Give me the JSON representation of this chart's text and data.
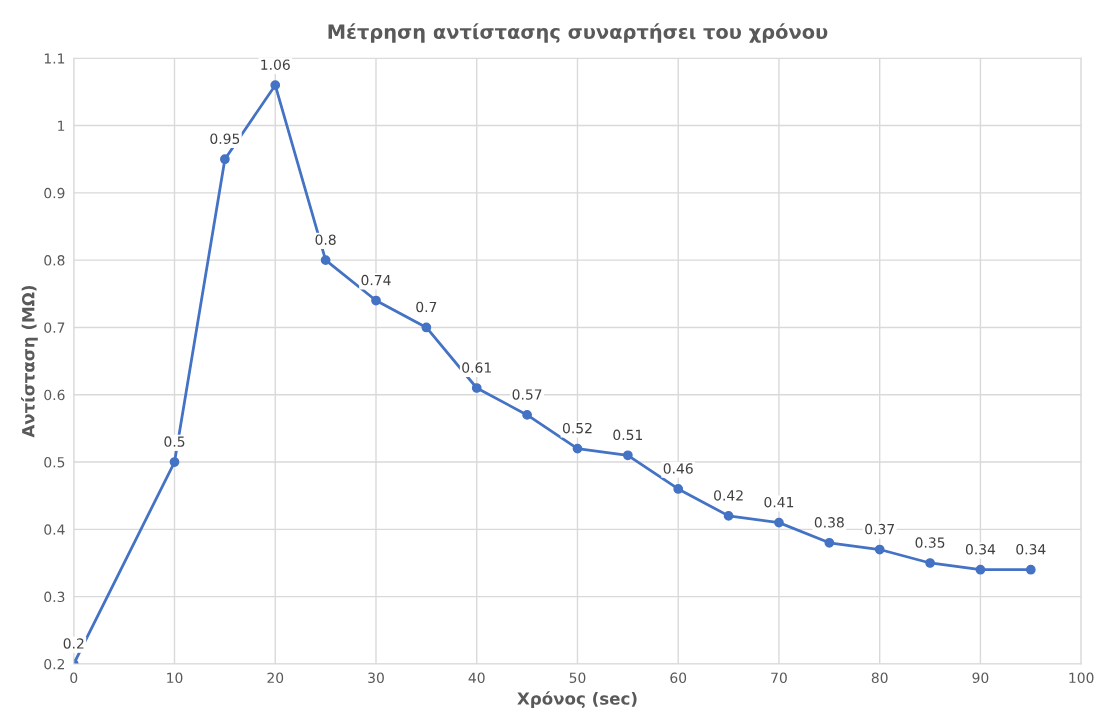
{
  "chart_data": {
    "type": "line",
    "title": "Μέτρηση αντίστασης συναρτήσει του χρόνου",
    "xlabel": "Χρόνος (sec)",
    "ylabel": "Αντίσταση (MΩ)",
    "x": [
      0,
      10,
      15,
      20,
      25,
      30,
      35,
      40,
      45,
      50,
      55,
      60,
      65,
      70,
      75,
      80,
      85,
      90,
      95
    ],
    "series": [
      {
        "color": "#4472c4",
        "values": [
          0.2,
          0.5,
          0.95,
          1.06,
          0.8,
          0.74,
          0.7,
          0.61,
          0.57,
          0.52,
          0.51,
          0.46,
          0.42,
          0.41,
          0.38,
          0.37,
          0.35,
          0.34,
          0.34
        ]
      }
    ],
    "xlim": [
      0,
      100
    ],
    "xticks": [
      0,
      10,
      20,
      30,
      40,
      50,
      60,
      70,
      80,
      90,
      100
    ],
    "ylim": [
      0.2,
      1.1
    ],
    "yticks": [
      0.2,
      0.3,
      0.4,
      0.5,
      0.6,
      0.7,
      0.8,
      0.9,
      1,
      1.1
    ],
    "grid": true,
    "marker": "circle",
    "line_style": "solid",
    "data_labels": true
  }
}
